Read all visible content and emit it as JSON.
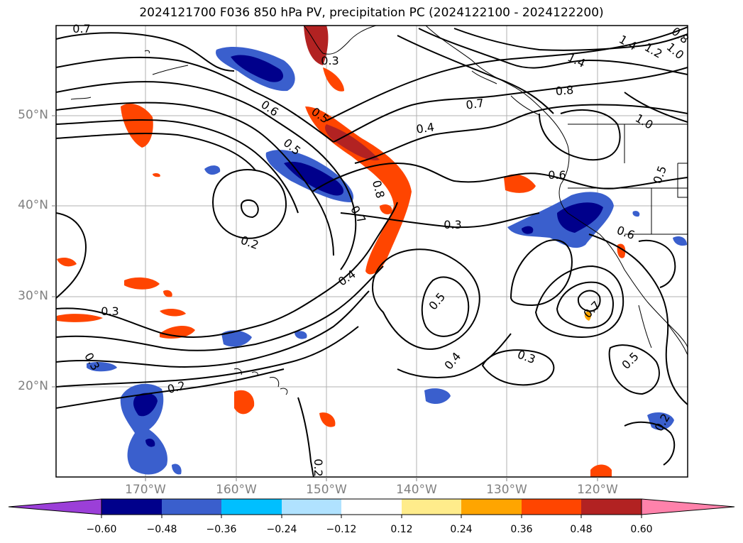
{
  "title": "2024121700 F036 850 hPa PV, precipitation PC (2024122100 - 2024122200)",
  "lat_labels": [
    "50°N",
    "40°N",
    "30°N",
    "20°N"
  ],
  "lon_labels": [
    "170°W",
    "160°W",
    "150°W",
    "140°W",
    "130°W",
    "120°W"
  ],
  "colorbar": {
    "ticks": [
      "−0.60",
      "−0.48",
      "−0.36",
      "−0.24",
      "−0.12",
      "0.12",
      "0.24",
      "0.36",
      "0.48",
      "0.60"
    ],
    "colors": [
      "#9b3fd8",
      "#00008b",
      "#3a5fcd",
      "#00bfff",
      "#b0e2ff",
      "#ffffff",
      "#ffec8b",
      "#ffa500",
      "#ff4500",
      "#b22222",
      "#ff82ab"
    ]
  },
  "contour_labels": [
    "0.7",
    "0.3",
    "0.6",
    "0.5",
    "0.4",
    "0.7",
    "0.8",
    "1.4",
    "1.4",
    "1.2",
    "1.0",
    "0.8",
    "1.0",
    "0.5",
    "0.6",
    "0.5",
    "0.8",
    "0.7",
    "0.3",
    "0.2",
    "0.6",
    "0.4",
    "0.5",
    "0.4",
    "0.3",
    "0.7",
    "0.5",
    "0.3",
    "0.3",
    "0.2",
    "0.2",
    "0.2"
  ]
}
